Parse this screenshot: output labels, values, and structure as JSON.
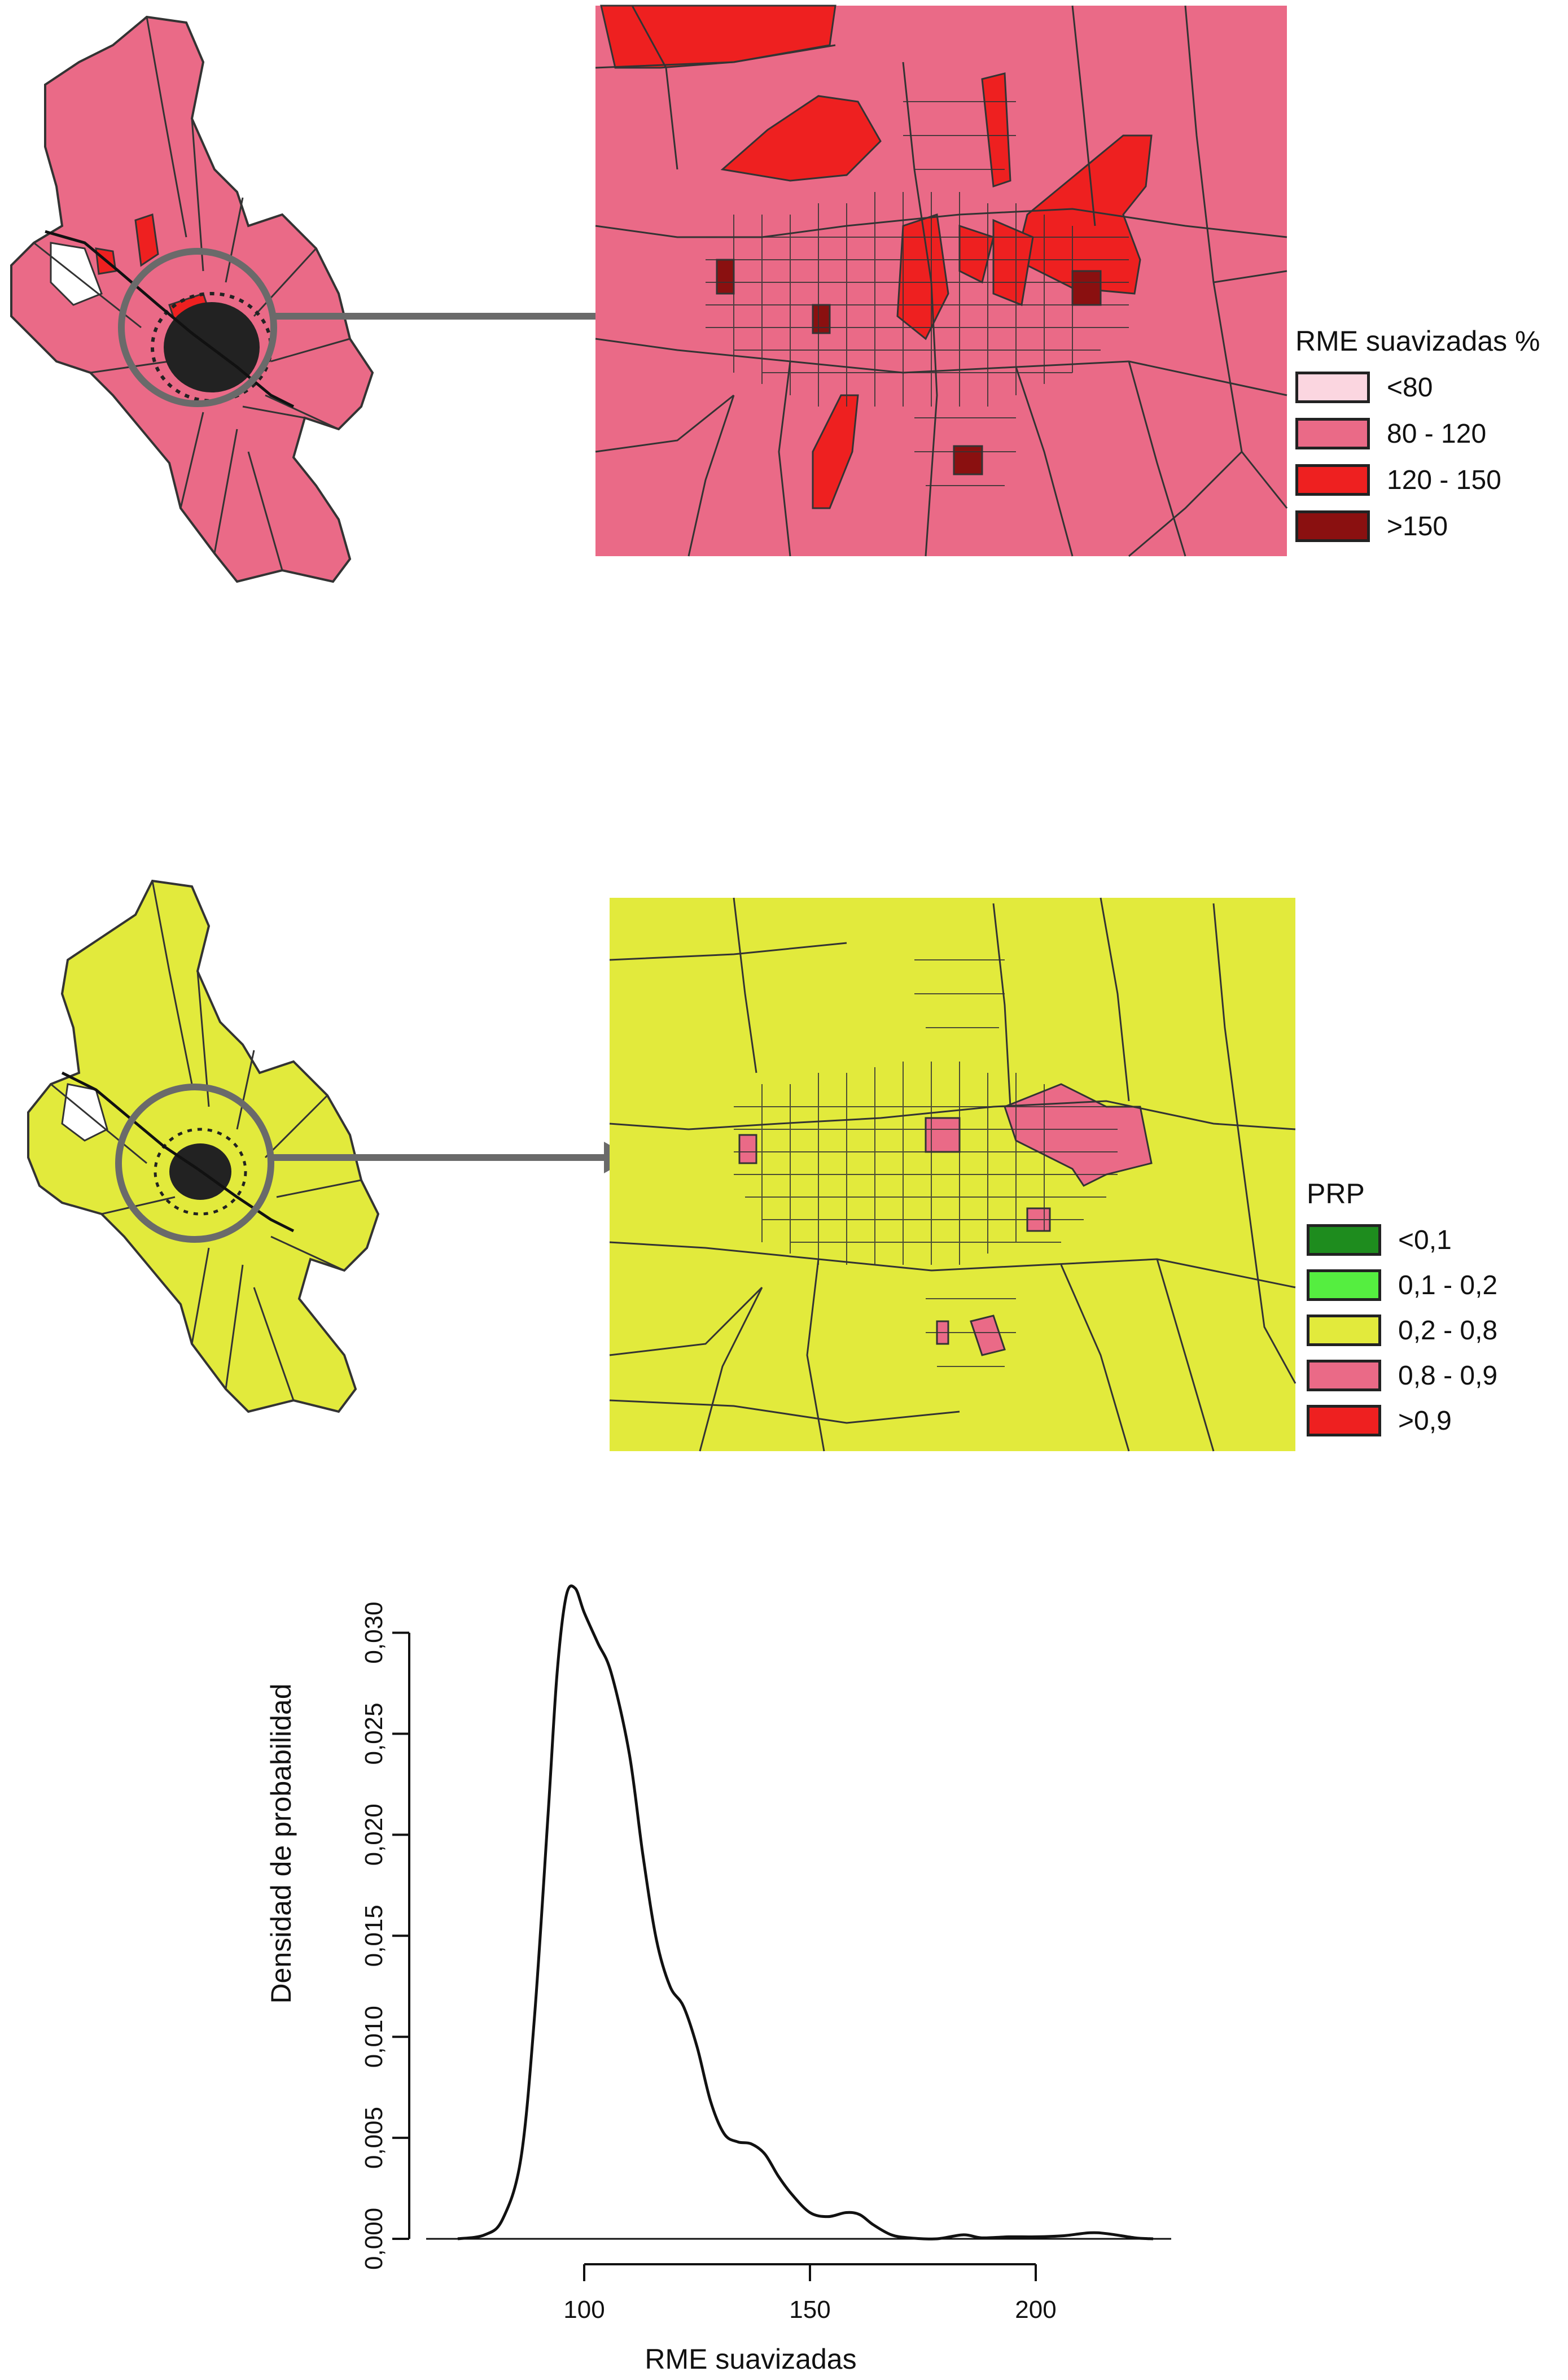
{
  "maps": [
    {
      "id": "rme",
      "legend_title": "RME suavizadas %",
      "base_color": "#ea6a87",
      "legend": [
        {
          "label": "<80",
          "color": "#fbd6e0"
        },
        {
          "label": "80 - 120",
          "color": "#ea6a87"
        },
        {
          "label": "120 - 150",
          "color": "#ee2020"
        },
        {
          "label": ">150",
          "color": "#8a1010"
        }
      ]
    },
    {
      "id": "prp",
      "legend_title": "PRP",
      "base_color": "#e2ea3c",
      "legend": [
        {
          "label": "<0,1",
          "color": "#1e8c1e"
        },
        {
          "label": "0,1 - 0,2",
          "color": "#55ee40"
        },
        {
          "label": "0,2 - 0,8",
          "color": "#e2ea3c"
        },
        {
          "label": "0,8 - 0,9",
          "color": "#ea6a87"
        },
        {
          "label": ">0,9",
          "color": "#ee2020"
        }
      ]
    }
  ],
  "chart_data": {
    "type": "line",
    "title": "",
    "xlabel": "RME suavizadas",
    "ylabel": "Densidad de probabilidad",
    "xlim": [
      65,
      230
    ],
    "ylim": [
      0,
      0.032
    ],
    "x_ticks": [
      100,
      150,
      200
    ],
    "x_tick_labels": [
      "100",
      "150",
      "200"
    ],
    "y_ticks": [
      0,
      0.005,
      0.01,
      0.015,
      0.02,
      0.025,
      0.03
    ],
    "y_tick_labels": [
      "0,000",
      "0,005",
      "0,010",
      "0,015",
      "0,020",
      "0,025",
      "0,030"
    ],
    "series": [
      {
        "x": [
          72,
          78,
          82,
          86,
          89,
          92,
          94,
          96,
          98,
          100,
          103,
          106,
          110,
          113,
          116,
          119,
          122,
          125,
          128,
          131,
          134,
          137,
          140,
          143,
          146,
          150,
          154,
          158,
          161,
          164,
          168,
          172,
          178,
          184,
          188,
          194,
          200,
          206,
          212,
          216,
          222,
          226
        ],
        "y": [
          0,
          0.0002,
          0.001,
          0.004,
          0.011,
          0.021,
          0.028,
          0.0318,
          0.0322,
          0.031,
          0.0295,
          0.028,
          0.024,
          0.019,
          0.0148,
          0.0125,
          0.0115,
          0.0095,
          0.0068,
          0.0052,
          0.0048,
          0.0047,
          0.0042,
          0.0031,
          0.0022,
          0.0013,
          0.0011,
          0.0013,
          0.0012,
          0.0007,
          0.0002,
          5e-05,
          0,
          0.0002,
          5e-05,
          0.0001,
          0.0001,
          0.00015,
          0.0003,
          0.00025,
          5e-05,
          0
        ]
      }
    ]
  }
}
